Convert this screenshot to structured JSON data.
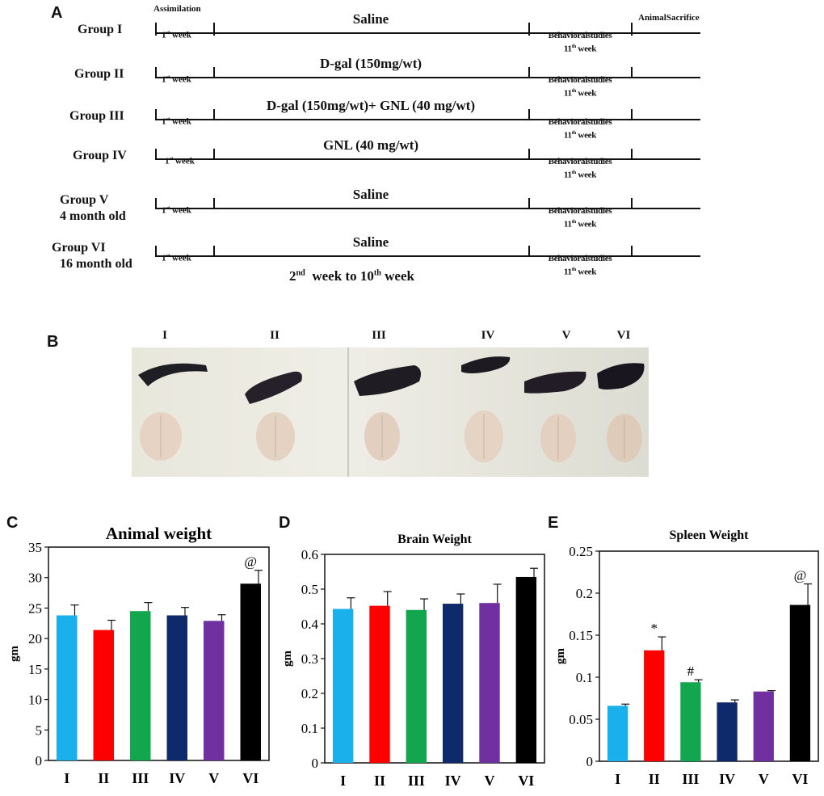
{
  "panels": {
    "a": "A",
    "b": "B",
    "c": "C",
    "d": "D",
    "e": "E"
  },
  "timeline": {
    "assimilation": "Assimilation",
    "animal_sacrifice": "AnimalSacrifice",
    "first_week": "1st week",
    "behavioral_studies": "Behavioralstudies",
    "eleventh_week": "11th week",
    "bottom_label": "2nd week to 10th week",
    "groups": [
      {
        "name": "Group I",
        "sub": "",
        "treatment": "Saline"
      },
      {
        "name": "Group II",
        "sub": "",
        "treatment": "D-gal (150mg/wt)"
      },
      {
        "name": "Group III",
        "sub": "",
        "treatment": "D-gal (150mg/wt)+  GNL (40 mg/wt)"
      },
      {
        "name": "Group IV",
        "sub": "",
        "treatment": "GNL (40 mg/wt)"
      },
      {
        "name": "Group V",
        "sub": "4 month old",
        "treatment": "Saline"
      },
      {
        "name": "Group VI",
        "sub": "16 month old",
        "treatment": "Saline"
      }
    ]
  },
  "photo": {
    "labels": [
      "I",
      "II",
      "III",
      "IV",
      "V",
      "VI"
    ]
  },
  "colors": {
    "I": "#1ab0ec",
    "II": "#ff0000",
    "III": "#12a64e",
    "IV": "#0e2a6b",
    "V": "#7030a0",
    "VI": "#000000"
  },
  "chart_data": [
    {
      "type": "bar",
      "title": "Animal weight",
      "ylabel": "gm",
      "xlabel": "",
      "categories": [
        "I",
        "II",
        "III",
        "IV",
        "V",
        "VI"
      ],
      "values": [
        23.8,
        21.4,
        24.5,
        23.8,
        22.9,
        29.0
      ],
      "errors": [
        1.7,
        1.6,
        1.4,
        1.3,
        1.0,
        2.2
      ],
      "annotations": [
        "",
        "",
        "",
        "",
        "",
        "@"
      ],
      "ylim": [
        0,
        35
      ],
      "yticks": [
        0,
        5,
        10,
        15,
        20,
        25,
        30,
        35
      ],
      "ytick_labels": [
        "0",
        "5",
        "10",
        "15",
        "20",
        "25",
        "30",
        "35"
      ]
    },
    {
      "type": "bar",
      "title": "Brain Weight",
      "ylabel": "gm",
      "xlabel": "",
      "categories": [
        "I",
        "II",
        "III",
        "IV",
        "V",
        "VI"
      ],
      "values": [
        0.443,
        0.452,
        0.44,
        0.458,
        0.46,
        0.535
      ],
      "errors": [
        0.032,
        0.041,
        0.032,
        0.028,
        0.054,
        0.025
      ],
      "annotations": [
        "",
        "",
        "",
        "",
        "",
        ""
      ],
      "ylim": [
        0,
        0.6
      ],
      "yticks": [
        0,
        0.1,
        0.2,
        0.3,
        0.4,
        0.5,
        0.6
      ],
      "ytick_labels": [
        "0",
        "0.1",
        "0.2",
        "0.3",
        "0.4",
        "0.5",
        "0.6"
      ]
    },
    {
      "type": "bar",
      "title": "Spleen Weight",
      "ylabel": "gm",
      "xlabel": "",
      "categories": [
        "I",
        "II",
        "III",
        "IV",
        "V",
        "VI"
      ],
      "values": [
        0.066,
        0.132,
        0.094,
        0.07,
        0.083,
        0.186
      ],
      "errors": [
        0.002,
        0.016,
        0.003,
        0.003,
        0.001,
        0.025
      ],
      "annotations": [
        "",
        "*",
        "#",
        "",
        "",
        "@"
      ],
      "ylim": [
        0,
        0.25
      ],
      "yticks": [
        0,
        0.05,
        0.1,
        0.15,
        0.2,
        0.25
      ],
      "ytick_labels": [
        "0",
        "0.05",
        "0.1",
        "0.15",
        "0.2",
        "0.25"
      ]
    }
  ]
}
